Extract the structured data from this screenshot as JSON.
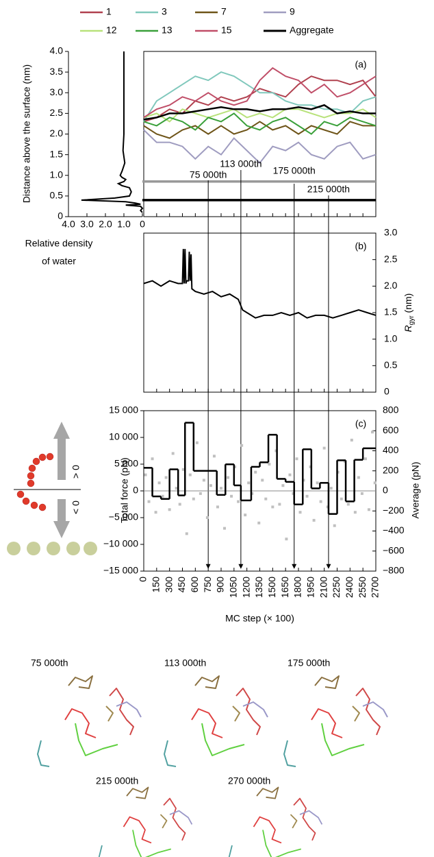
{
  "chart_data": [
    {
      "type": "line",
      "xlabel": [
        "Relative density",
        "of water"
      ],
      "ylabel": "Distance above the surface (nm)",
      "color": "#000000",
      "xlim": [
        4,
        0
      ],
      "xticks": [
        {
          "value": 4,
          "label": "4.0"
        },
        {
          "value": 3,
          "label": "3.0"
        },
        {
          "value": 2,
          "label": "2.0"
        },
        {
          "value": 1,
          "label": "1.0"
        },
        0
      ],
      "ylim": [
        0,
        4
      ],
      "yticks": [
        0,
        0.5,
        {
          "value": 1,
          "label": "1.0"
        },
        1.5,
        {
          "value": 2,
          "label": "2.0"
        },
        2.5,
        {
          "value": 3,
          "label": "3.0"
        },
        3.5,
        {
          "value": 4,
          "label": "4.0"
        }
      ],
      "x": [
        1.0,
        1.0,
        1.0,
        1.0,
        1.0,
        1.05,
        0.95,
        1.1,
        1.2,
        1.1,
        0.9,
        1.0,
        1.3,
        1.1,
        0.7,
        0.6,
        0.7,
        1.5,
        3.3,
        2.0,
        0.9,
        0.4,
        0.1,
        0.9,
        0.1,
        0.0,
        0.1,
        0.0
      ],
      "values": [
        4.0,
        3.5,
        3.0,
        2.5,
        2.0,
        1.6,
        1.3,
        1.1,
        1.0,
        0.95,
        0.9,
        0.85,
        0.8,
        0.75,
        0.7,
        0.6,
        0.5,
        0.45,
        0.4,
        0.38,
        0.36,
        0.33,
        0.3,
        0.28,
        0.25,
        0.2,
        0.15,
        0.1
      ]
    },
    {
      "type": "line",
      "label": "(a)",
      "xlim": [
        0,
        2700
      ],
      "ylim": [
        0,
        4
      ],
      "x": [
        0,
        150,
        300,
        450,
        600,
        750,
        900,
        1050,
        1200,
        1350,
        1500,
        1650,
        1800,
        1950,
        2100,
        2250,
        2400,
        2550,
        2700
      ],
      "series": [
        {
          "name": "1",
          "color": "#b0404e",
          "values": [
            2.3,
            2.4,
            2.6,
            2.5,
            2.8,
            2.7,
            2.9,
            2.8,
            2.9,
            3.1,
            3.0,
            2.9,
            3.2,
            3.4,
            3.3,
            3.3,
            3.2,
            3.3,
            2.9
          ]
        },
        {
          "name": "3",
          "color": "#80c8bc",
          "values": [
            2.3,
            2.8,
            3.0,
            3.2,
            3.4,
            3.3,
            3.5,
            3.4,
            3.2,
            3.0,
            3.0,
            2.8,
            2.7,
            2.7,
            2.6,
            2.6,
            2.5,
            2.8,
            2.9
          ]
        },
        {
          "name": "7",
          "color": "#6e5418",
          "values": [
            2.2,
            2.0,
            1.9,
            2.1,
            2.2,
            2.0,
            2.2,
            2.0,
            2.1,
            2.3,
            2.1,
            2.2,
            2.0,
            2.2,
            2.1,
            2.0,
            2.3,
            2.2,
            2.2
          ]
        },
        {
          "name": "9",
          "color": "#9f9cc0",
          "values": [
            2.1,
            1.8,
            1.8,
            1.7,
            1.4,
            1.7,
            1.5,
            1.9,
            1.6,
            1.3,
            1.7,
            1.6,
            1.8,
            1.5,
            1.4,
            1.7,
            1.8,
            1.4,
            1.5
          ]
        },
        {
          "name": "12",
          "color": "#b8e27a",
          "values": [
            2.4,
            2.5,
            2.3,
            2.6,
            2.5,
            2.4,
            2.5,
            2.6,
            2.4,
            2.5,
            2.4,
            2.6,
            2.6,
            2.5,
            2.4,
            2.5,
            2.5,
            2.6,
            2.4
          ]
        },
        {
          "name": "13",
          "color": "#3aa03a",
          "values": [
            2.3,
            2.2,
            2.4,
            2.3,
            2.1,
            2.4,
            2.3,
            2.5,
            2.2,
            2.1,
            2.3,
            2.4,
            2.2,
            2.0,
            2.3,
            2.2,
            2.4,
            2.3,
            2.2
          ]
        },
        {
          "name": "15",
          "color": "#c04e68",
          "values": [
            2.4,
            2.6,
            2.7,
            2.9,
            2.8,
            3.0,
            2.8,
            2.7,
            2.8,
            3.3,
            3.6,
            3.4,
            3.3,
            3.0,
            3.2,
            2.9,
            3.0,
            3.2,
            3.4
          ]
        },
        {
          "name": "Aggregate",
          "color": "#000000",
          "values": [
            2.35,
            2.4,
            2.5,
            2.5,
            2.55,
            2.6,
            2.65,
            2.6,
            2.6,
            2.55,
            2.6,
            2.6,
            2.65,
            2.6,
            2.7,
            2.5,
            2.55,
            2.5,
            2.5
          ]
        }
      ],
      "hlines": [
        {
          "value": 0.85,
          "color": "#999999"
        },
        {
          "value": 0.4,
          "color": "#000000"
        }
      ],
      "annotations": [
        {
          "text": "75 000th",
          "x": 750
        },
        {
          "text": "113 000th",
          "x": 1130
        },
        {
          "text": "175 000th",
          "x": 1750
        },
        {
          "text": "215 000th",
          "x": 2150
        }
      ]
    },
    {
      "type": "line",
      "label": "(b)",
      "ylabel": {
        "main": "R",
        "sub": "gyr",
        "unit": " (nm)"
      },
      "color": "#000000",
      "xlim": [
        0,
        2700
      ],
      "ylim": [
        0,
        3
      ],
      "yticks": [
        0,
        0.5,
        {
          "value": 1,
          "label": "1.0"
        },
        1.5,
        {
          "value": 2,
          "label": "2.0"
        },
        2.5,
        {
          "value": 3,
          "label": "3.0"
        }
      ],
      "x": [
        0,
        100,
        200,
        300,
        400,
        450,
        460,
        470,
        480,
        490,
        500,
        520,
        530,
        540,
        550,
        560,
        600,
        700,
        800,
        900,
        1000,
        1100,
        1150,
        1200,
        1300,
        1400,
        1500,
        1600,
        1700,
        1800,
        1900,
        2000,
        2100,
        2200,
        2300,
        2400,
        2500,
        2600,
        2700
      ],
      "values": [
        2.05,
        2.1,
        2.0,
        2.1,
        2.05,
        2.05,
        2.7,
        2.05,
        2.7,
        2.05,
        2.1,
        2.1,
        2.65,
        2.1,
        2.6,
        1.95,
        1.9,
        1.85,
        1.9,
        1.8,
        1.85,
        1.75,
        1.55,
        1.5,
        1.4,
        1.45,
        1.45,
        1.5,
        1.45,
        1.5,
        1.4,
        1.45,
        1.45,
        1.4,
        1.45,
        1.5,
        1.55,
        1.5,
        1.45
      ]
    },
    {
      "type": "scatter",
      "label": "(c)",
      "xlabel": "MC step (× 100)",
      "ylabel": "Total force (pN)",
      "y2label": "Average (pN)",
      "color": "#c0c0c0",
      "xlim": [
        0,
        2700
      ],
      "xticks": [
        0,
        150,
        300,
        450,
        600,
        750,
        900,
        1050,
        1200,
        1350,
        1500,
        1650,
        1800,
        1950,
        2100,
        2250,
        2400,
        2550,
        2700
      ],
      "ylim": [
        -15000,
        15000
      ],
      "yticks": [
        {
          "value": -15000,
          "label": "−15 000"
        },
        {
          "value": -10000,
          "label": "−10 000"
        },
        {
          "value": -5000,
          "label": "−5 000"
        },
        0,
        {
          "value": 5000,
          "label": "5 000"
        },
        {
          "value": 10000,
          "label": "10 000"
        },
        {
          "value": 15000,
          "label": "15 000"
        }
      ],
      "y2lim": [
        -800,
        800
      ],
      "y2ticks": [
        {
          "value": -800,
          "label": "−800"
        },
        {
          "value": -600,
          "label": "−600"
        },
        {
          "value": -400,
          "label": "−400"
        },
        {
          "value": -200,
          "label": "−200"
        },
        0,
        200,
        400,
        600,
        800
      ],
      "x": [
        20,
        60,
        100,
        140,
        180,
        220,
        260,
        300,
        340,
        380,
        420,
        460,
        500,
        540,
        580,
        620,
        660,
        700,
        740,
        780,
        820,
        860,
        900,
        940,
        980,
        1020,
        1060,
        1100,
        1140,
        1180,
        1220,
        1260,
        1300,
        1340,
        1380,
        1420,
        1460,
        1500,
        1540,
        1580,
        1620,
        1660,
        1700,
        1740,
        1780,
        1820,
        1860,
        1900,
        1940,
        1980,
        2020,
        2060,
        2100,
        2140,
        2180,
        2220,
        2260,
        2300,
        2340,
        2380,
        2420,
        2460,
        2500,
        2540,
        2580,
        2620,
        2660,
        2690
      ],
      "values": [
        3000,
        -2000,
        6000,
        -4000,
        1500,
        -1000,
        2500,
        -3500,
        7000,
        500,
        -2500,
        4000,
        -8000,
        3000,
        -1500,
        9000,
        -500,
        2000,
        -5000,
        1000,
        6500,
        -3000,
        500,
        -7000,
        2500,
        -1000,
        4500,
        -2000,
        8500,
        -4500,
        1500,
        -500,
        3500,
        -6000,
        2000,
        -1500,
        5000,
        -3000,
        7500,
        -2500,
        1000,
        -9000,
        3000,
        -500,
        6000,
        -4000,
        2000,
        -1000,
        4500,
        -5500,
        1500,
        -2000,
        8000,
        -3000,
        500,
        -6500,
        3500,
        -1500,
        5500,
        -2500,
        9500,
        -4000,
        2500,
        -500,
        6000,
        -3500,
        11000,
        1500
      ],
      "step": {
        "axis": "y2",
        "color": "#000000",
        "x": [
          0,
          100,
          200,
          300,
          400,
          480,
          580,
          850,
          950,
          1050,
          1130,
          1250,
          1350,
          1450,
          1550,
          1650,
          1750,
          1850,
          1950,
          2050,
          2150,
          2250,
          2350,
          2450,
          2550
        ],
        "values": [
          230,
          -55,
          -80,
          215,
          -45,
          680,
          200,
          -40,
          265,
          55,
          -95,
          240,
          285,
          560,
          120,
          90,
          -135,
          415,
          25,
          80,
          -230,
          305,
          -105,
          310,
          425
        ]
      }
    }
  ],
  "schematic": {
    "positive": "> 0",
    "negative": "< 0"
  },
  "snapshots": [
    "75 000th",
    "113 000th",
    "175 000th",
    "215 000th",
    "270 000th"
  ]
}
